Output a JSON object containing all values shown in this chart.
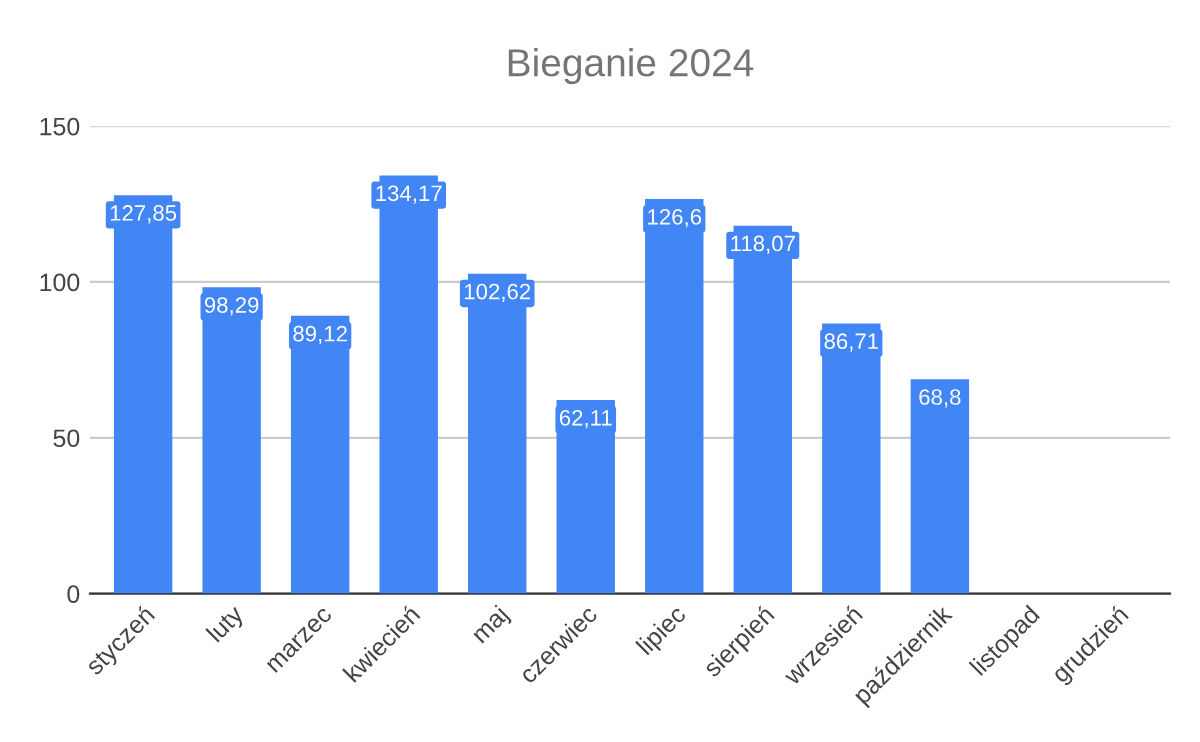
{
  "chart_data": {
    "type": "bar",
    "title": "Bieganie 2024",
    "categories": [
      "styczeń",
      "luty",
      "marzec",
      "kwiecień",
      "maj",
      "czerwiec",
      "lipiec",
      "sierpień",
      "wrzesień",
      "październik",
      "listopad",
      "grudzień"
    ],
    "values": [
      127.85,
      98.29,
      89.12,
      134.17,
      102.62,
      62.11,
      126.6,
      118.07,
      86.71,
      68.8,
      null,
      null
    ],
    "value_labels": [
      "127,85",
      "98,29",
      "89,12",
      "134,17",
      "102,62",
      "62,11",
      "126,6",
      "118,07",
      "86,71",
      "68,8",
      null,
      null
    ],
    "color": "#4285f4",
    "ylim": [
      0,
      150
    ],
    "yticks": [
      0,
      50,
      100,
      150
    ],
    "grid": "y",
    "legend": false
  }
}
